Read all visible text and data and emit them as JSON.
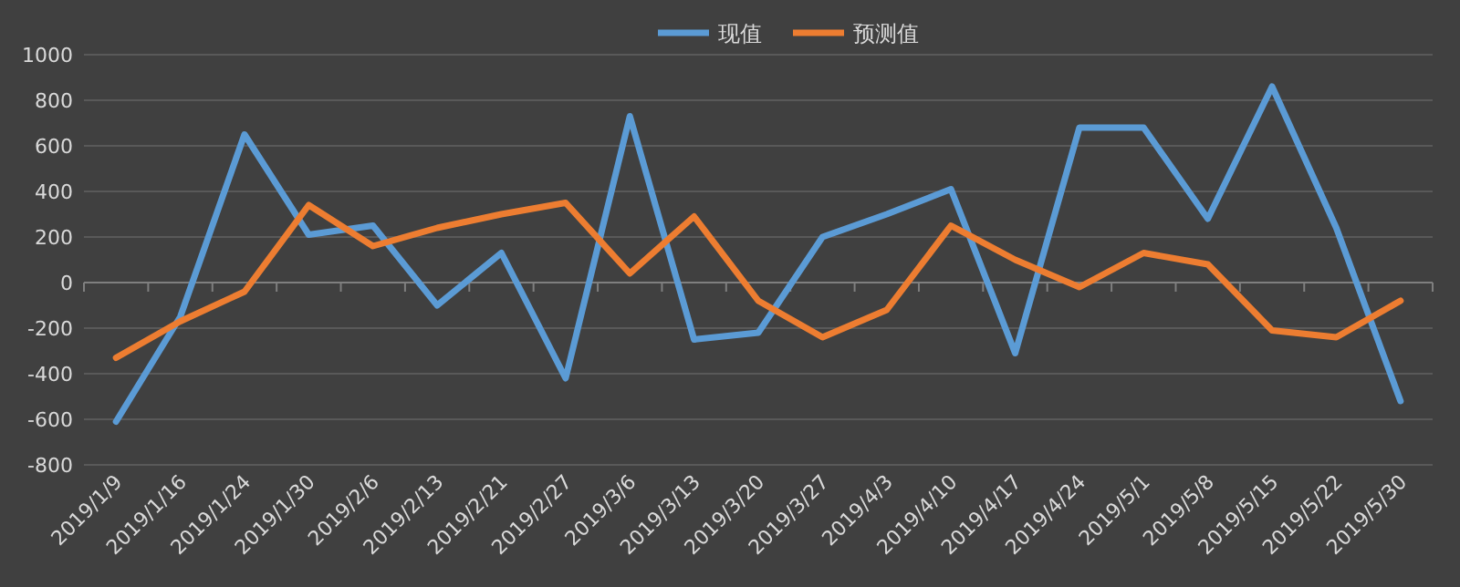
{
  "chart_data": {
    "type": "line",
    "categories": [
      "2019/1/9",
      "2019/1/16",
      "2019/1/24",
      "2019/1/30",
      "2019/2/6",
      "2019/2/13",
      "2019/2/21",
      "2019/2/27",
      "2019/3/6",
      "2019/3/13",
      "2019/3/20",
      "2019/3/27",
      "2019/4/3",
      "2019/4/10",
      "2019/4/17",
      "2019/4/24",
      "2019/5/1",
      "2019/5/8",
      "2019/5/15",
      "2019/5/22",
      "2019/5/30"
    ],
    "series": [
      {
        "name": "现值",
        "color": "#5b9bd5",
        "values": [
          -610,
          -150,
          650,
          210,
          250,
          -100,
          130,
          -420,
          730,
          -250,
          -220,
          200,
          300,
          410,
          -310,
          680,
          680,
          280,
          860,
          240,
          -520
        ]
      },
      {
        "name": "预测值",
        "color": "#ed7d31",
        "values": [
          -330,
          -170,
          -40,
          340,
          160,
          240,
          300,
          350,
          40,
          290,
          -80,
          -240,
          -120,
          250,
          100,
          -20,
          130,
          80,
          -210,
          -240,
          -80
        ]
      }
    ],
    "ylim": [
      -800,
      1000
    ],
    "yticks": [
      -800,
      -600,
      -400,
      -200,
      0,
      200,
      400,
      600,
      800,
      1000
    ],
    "grid": "y",
    "legend": "top",
    "marker": "none",
    "line_style": "solid"
  }
}
